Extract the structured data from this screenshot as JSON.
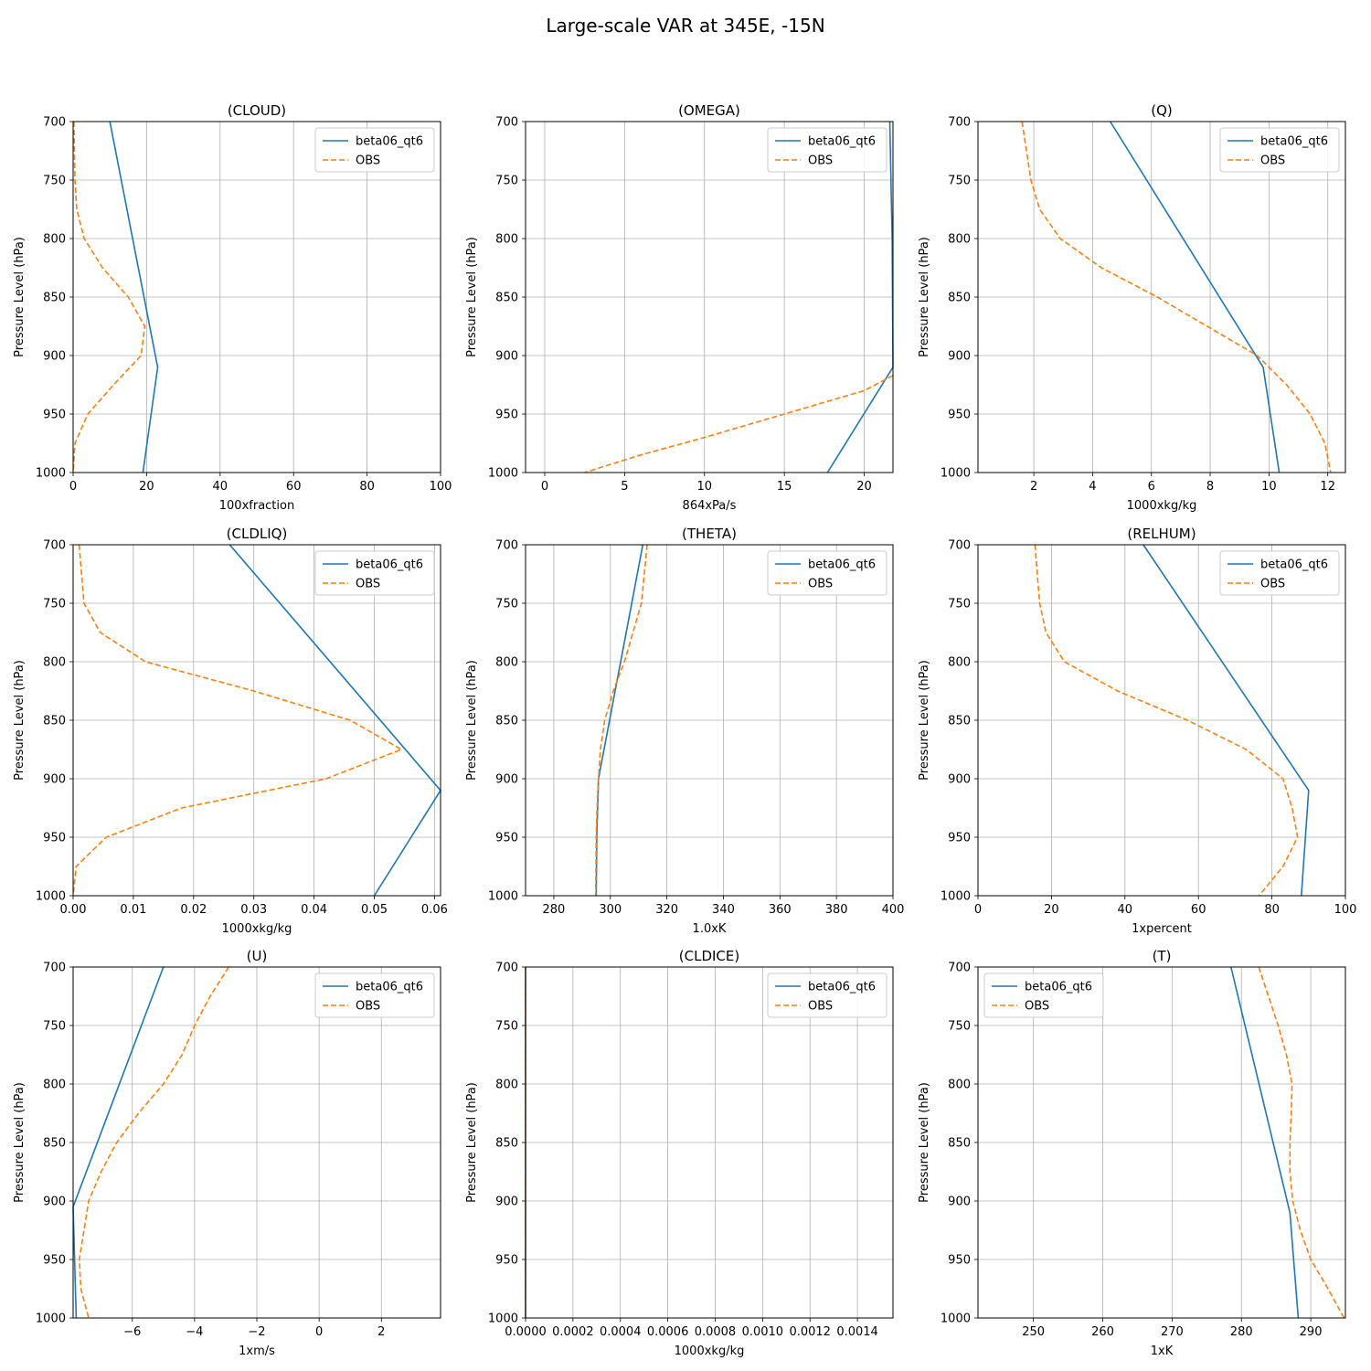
{
  "figure": {
    "title": "Large-scale VAR at 345E, -15N"
  },
  "colors": {
    "model": "#1f77b4",
    "obs": "#ff7f0e",
    "grid": "#b0b0b0"
  },
  "chart_data": [
    {
      "type": "line",
      "title": "(CLOUD)",
      "xlabel": "100xfraction",
      "ylabel": "Pressure Level (hPa)",
      "xlim": [
        0,
        100
      ],
      "ylim": [
        1000,
        700
      ],
      "xticks": [
        0,
        20,
        40,
        60,
        80,
        100
      ],
      "xticklabels": [
        "0",
        "20",
        "40",
        "60",
        "80",
        "100"
      ],
      "yticks": [
        700,
        750,
        800,
        850,
        900,
        950,
        1000
      ],
      "yticklabels": [
        "700",
        "750",
        "800",
        "850",
        "900",
        "950",
        "1000"
      ],
      "legend": "upper right",
      "grid": true,
      "series": [
        {
          "name": "beta06_qt6",
          "style": "solid",
          "x": [
            10,
            23,
            19
          ],
          "y": [
            700,
            910,
            1000
          ]
        },
        {
          "name": "OBS",
          "style": "dashed",
          "x": [
            0.2,
            0.5,
            1,
            3,
            8,
            15,
            19.5,
            18.5,
            11,
            4,
            0.5,
            0
          ],
          "y": [
            700,
            750,
            775,
            800,
            825,
            850,
            875,
            900,
            925,
            950,
            975,
            1000
          ]
        }
      ]
    },
    {
      "type": "line",
      "title": "(OMEGA)",
      "xlabel": "864xPa/s",
      "ylabel": "Pressure Level (hPa)",
      "xlim": [
        -1.2,
        21.8
      ],
      "ylim": [
        1000,
        700
      ],
      "xticks": [
        0,
        5,
        10,
        15,
        20
      ],
      "xticklabels": [
        "0",
        "5",
        "10",
        "15",
        "20"
      ],
      "yticks": [
        700,
        750,
        800,
        850,
        900,
        950,
        1000
      ],
      "yticklabels": [
        "700",
        "750",
        "800",
        "850",
        "900",
        "950",
        "1000"
      ],
      "legend": "upper right",
      "grid": true,
      "series": [
        {
          "name": "beta06_qt6",
          "style": "solid",
          "x": [
            21.6,
            21.75,
            21.8,
            17.7
          ],
          "y": [
            700,
            800,
            910,
            1000
          ]
        },
        {
          "name": "OBS",
          "style": "dashed",
          "x": [
            21.8,
            20,
            15,
            10,
            6,
            2.5
          ],
          "y": [
            917,
            930,
            950,
            970,
            985,
            1000
          ]
        }
      ]
    },
    {
      "type": "line",
      "title": "(Q)",
      "xlabel": "1000xkg/kg",
      "ylabel": "Pressure Level (hPa)",
      "xlim": [
        0.1,
        12.6
      ],
      "ylim": [
        1000,
        700
      ],
      "xticks": [
        2,
        4,
        6,
        8,
        10,
        12
      ],
      "xticklabels": [
        "2",
        "4",
        "6",
        "8",
        "10",
        "12"
      ],
      "yticks": [
        700,
        750,
        800,
        850,
        900,
        950,
        1000
      ],
      "yticklabels": [
        "700",
        "750",
        "800",
        "850",
        "900",
        "950",
        "1000"
      ],
      "legend": "upper right",
      "grid": true,
      "series": [
        {
          "name": "beta06_qt6",
          "style": "solid",
          "x": [
            4.6,
            9.8,
            10.35
          ],
          "y": [
            700,
            910,
            1000
          ]
        },
        {
          "name": "OBS",
          "style": "dashed",
          "x": [
            1.6,
            1.9,
            2.2,
            2.9,
            4.3,
            6.2,
            7.9,
            9.6,
            10.6,
            11.4,
            11.9,
            12.1
          ],
          "y": [
            700,
            750,
            775,
            800,
            825,
            850,
            875,
            900,
            925,
            950,
            975,
            1000
          ]
        }
      ]
    },
    {
      "type": "line",
      "title": "(CLDLIQ)",
      "xlabel": "1000xkg/kg",
      "ylabel": "Pressure Level (hPa)",
      "xlim": [
        0,
        0.061
      ],
      "ylim": [
        1000,
        700
      ],
      "xticks": [
        0,
        0.01,
        0.02,
        0.03,
        0.04,
        0.05,
        0.06
      ],
      "xticklabels": [
        "0.00",
        "0.01",
        "0.02",
        "0.03",
        "0.04",
        "0.05",
        "0.06"
      ],
      "yticks": [
        700,
        750,
        800,
        850,
        900,
        950,
        1000
      ],
      "yticklabels": [
        "700",
        "750",
        "800",
        "850",
        "900",
        "950",
        "1000"
      ],
      "legend": "upper right",
      "grid": true,
      "series": [
        {
          "name": "beta06_qt6",
          "style": "solid",
          "x": [
            0.026,
            0.061,
            0.05
          ],
          "y": [
            700,
            910,
            1000
          ]
        },
        {
          "name": "OBS",
          "style": "dashed",
          "x": [
            0.001,
            0.0018,
            0.0045,
            0.012,
            0.03,
            0.046,
            0.0545,
            0.042,
            0.018,
            0.0055,
            0.0005,
            0
          ],
          "y": [
            700,
            750,
            775,
            800,
            825,
            850,
            875,
            900,
            925,
            950,
            975,
            1000
          ]
        }
      ]
    },
    {
      "type": "line",
      "title": "(THETA)",
      "xlabel": "1.0xK",
      "ylabel": "Pressure Level (hPa)",
      "xlim": [
        270,
        400
      ],
      "ylim": [
        1000,
        700
      ],
      "xticks": [
        280,
        300,
        320,
        340,
        360,
        380,
        400
      ],
      "xticklabels": [
        "280",
        "300",
        "320",
        "340",
        "360",
        "380",
        "400"
      ],
      "yticks": [
        700,
        750,
        800,
        850,
        900,
        950,
        1000
      ],
      "yticklabels": [
        "700",
        "750",
        "800",
        "850",
        "900",
        "950",
        "1000"
      ],
      "legend": "upper right",
      "grid": true,
      "series": [
        {
          "name": "beta06_qt6",
          "style": "solid",
          "x": [
            311.5,
            295.8,
            295.2,
            295
          ],
          "y": [
            700,
            900,
            950,
            1000
          ]
        },
        {
          "name": "OBS",
          "style": "dashed",
          "x": [
            313,
            311,
            308,
            305,
            301,
            298,
            296.5,
            295.8,
            295.3,
            295,
            294.9,
            294.8
          ],
          "y": [
            700,
            750,
            775,
            800,
            825,
            850,
            875,
            900,
            925,
            950,
            975,
            1000
          ]
        }
      ]
    },
    {
      "type": "line",
      "title": "(RELHUM)",
      "xlabel": "1xpercent",
      "ylabel": "Pressure Level (hPa)",
      "xlim": [
        0,
        100
      ],
      "ylim": [
        1000,
        700
      ],
      "xticks": [
        0,
        20,
        40,
        60,
        80,
        100
      ],
      "xticklabels": [
        "0",
        "20",
        "40",
        "60",
        "80",
        "100"
      ],
      "yticks": [
        700,
        750,
        800,
        850,
        900,
        950,
        1000
      ],
      "yticklabels": [
        "700",
        "750",
        "800",
        "850",
        "900",
        "950",
        "1000"
      ],
      "legend": "upper right",
      "grid": true,
      "series": [
        {
          "name": "beta06_qt6",
          "style": "solid",
          "x": [
            45,
            90,
            88
          ],
          "y": [
            700,
            910,
            1000
          ]
        },
        {
          "name": "OBS",
          "style": "dashed",
          "x": [
            15.5,
            16.8,
            18.5,
            23.5,
            38,
            57,
            73,
            83,
            85.5,
            87,
            83,
            76.5
          ],
          "y": [
            700,
            750,
            775,
            800,
            825,
            850,
            875,
            900,
            925,
            950,
            975,
            1000
          ]
        }
      ]
    },
    {
      "type": "line",
      "title": "(U)",
      "xlabel": "1xm/s",
      "ylabel": "Pressure Level (hPa)",
      "xlim": [
        -7.9,
        3.9
      ],
      "ylim": [
        1000,
        700
      ],
      "xticks": [
        -6,
        -4,
        -2,
        0,
        2
      ],
      "xticklabels": [
        "−6",
        "−4",
        "−2",
        "0",
        "2"
      ],
      "yticks": [
        700,
        750,
        800,
        850,
        900,
        950,
        1000
      ],
      "yticklabels": [
        "700",
        "750",
        "800",
        "850",
        "900",
        "950",
        "1000"
      ],
      "legend": "upper right",
      "grid": true,
      "series": [
        {
          "name": "beta06_qt6",
          "style": "solid",
          "x": [
            -5,
            -7.9,
            -7.8
          ],
          "y": [
            700,
            905,
            1000
          ]
        },
        {
          "name": "OBS",
          "style": "dashed",
          "x": [
            -2.9,
            -3.5,
            -4.0,
            -4.4,
            -5.0,
            -5.8,
            -6.5,
            -7.0,
            -7.4,
            -7.7,
            -7.65,
            -7.4
          ],
          "y": [
            700,
            725,
            750,
            775,
            800,
            825,
            850,
            875,
            900,
            950,
            975,
            1000
          ]
        }
      ]
    },
    {
      "type": "line",
      "title": "(CLDICE)",
      "xlabel": "1000xkg/kg",
      "ylabel": "Pressure Level (hPa)",
      "xlim": [
        0,
        0.00155
      ],
      "ylim": [
        1000,
        700
      ],
      "xticks": [
        0,
        0.0002,
        0.0004,
        0.0006,
        0.0008,
        0.001,
        0.0012,
        0.0014
      ],
      "xticklabels": [
        "0.0000",
        "0.0002",
        "0.0004",
        "0.0006",
        "0.0008",
        "0.0010",
        "0.0012",
        "0.0014"
      ],
      "yticks": [
        700,
        750,
        800,
        850,
        900,
        950,
        1000
      ],
      "yticklabels": [
        "700",
        "750",
        "800",
        "850",
        "900",
        "950",
        "1000"
      ],
      "legend": "upper right",
      "grid": true,
      "series": [
        {
          "name": "beta06_qt6",
          "style": "solid",
          "x": [
            0,
            0
          ],
          "y": [
            700,
            1000
          ]
        },
        {
          "name": "OBS",
          "style": "dashed",
          "x": [
            0,
            0
          ],
          "y": [
            700,
            1000
          ]
        }
      ]
    },
    {
      "type": "line",
      "title": "(T)",
      "xlabel": "1xK",
      "ylabel": "Pressure Level (hPa)",
      "xlim": [
        242,
        295
      ],
      "ylim": [
        1000,
        700
      ],
      "xticks": [
        250,
        260,
        270,
        280,
        290
      ],
      "xticklabels": [
        "250",
        "260",
        "270",
        "280",
        "290"
      ],
      "yticks": [
        700,
        750,
        800,
        850,
        900,
        950,
        1000
      ],
      "yticklabels": [
        "700",
        "750",
        "800",
        "850",
        "900",
        "950",
        "1000"
      ],
      "legend": "upper left",
      "grid": true,
      "series": [
        {
          "name": "beta06_qt6",
          "style": "solid",
          "x": [
            278.5,
            287,
            288.2
          ],
          "y": [
            700,
            910,
            1000
          ]
        },
        {
          "name": "OBS",
          "style": "dashed",
          "x": [
            282.5,
            285.3,
            286.5,
            287.3,
            287.2,
            287,
            287,
            287.4,
            288.5,
            290,
            292.5,
            294.8
          ],
          "y": [
            700,
            750,
            775,
            800,
            825,
            850,
            875,
            900,
            925,
            950,
            975,
            1000
          ]
        }
      ]
    }
  ]
}
